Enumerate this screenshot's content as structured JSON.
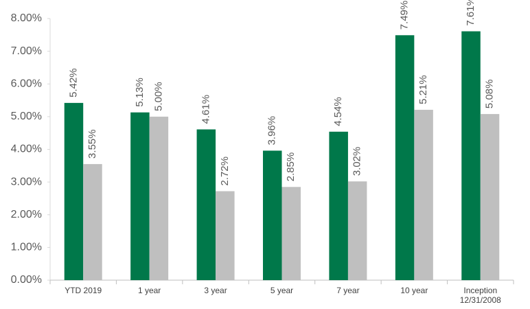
{
  "chart_data": {
    "type": "bar",
    "categories": [
      "YTD 2019",
      "1 year",
      "3 year",
      "5 year",
      "7 year",
      "10 year",
      "Inception\n12/31/2008"
    ],
    "series": [
      {
        "color": "#00784a",
        "values": [
          5.42,
          5.13,
          4.61,
          3.96,
          4.54,
          7.49,
          7.61
        ],
        "value_labels": [
          "5.42%",
          "5.13%",
          "4.61%",
          "3.96%",
          "4.54%",
          "7.49%",
          "7.61%"
        ]
      },
      {
        "color": "#bfbfbf",
        "values": [
          3.55,
          5.0,
          2.72,
          2.85,
          3.02,
          5.21,
          5.08
        ],
        "value_labels": [
          "3.55%",
          "5.00%",
          "2.72%",
          "2.85%",
          "3.02%",
          "5.21%",
          "5.08%"
        ]
      }
    ],
    "ylim": [
      0,
      8
    ],
    "yticks": [
      {
        "value": 0,
        "label": "0.00%"
      },
      {
        "value": 1,
        "label": "1.00%"
      },
      {
        "value": 2,
        "label": "2.00%"
      },
      {
        "value": 3,
        "label": "3.00%"
      },
      {
        "value": 4,
        "label": "4.00%"
      },
      {
        "value": 5,
        "label": "5.00%"
      },
      {
        "value": 6,
        "label": "6.00%"
      },
      {
        "value": 7,
        "label": "7.00%"
      },
      {
        "value": 8,
        "label": "8.00%"
      }
    ],
    "grid": false
  }
}
